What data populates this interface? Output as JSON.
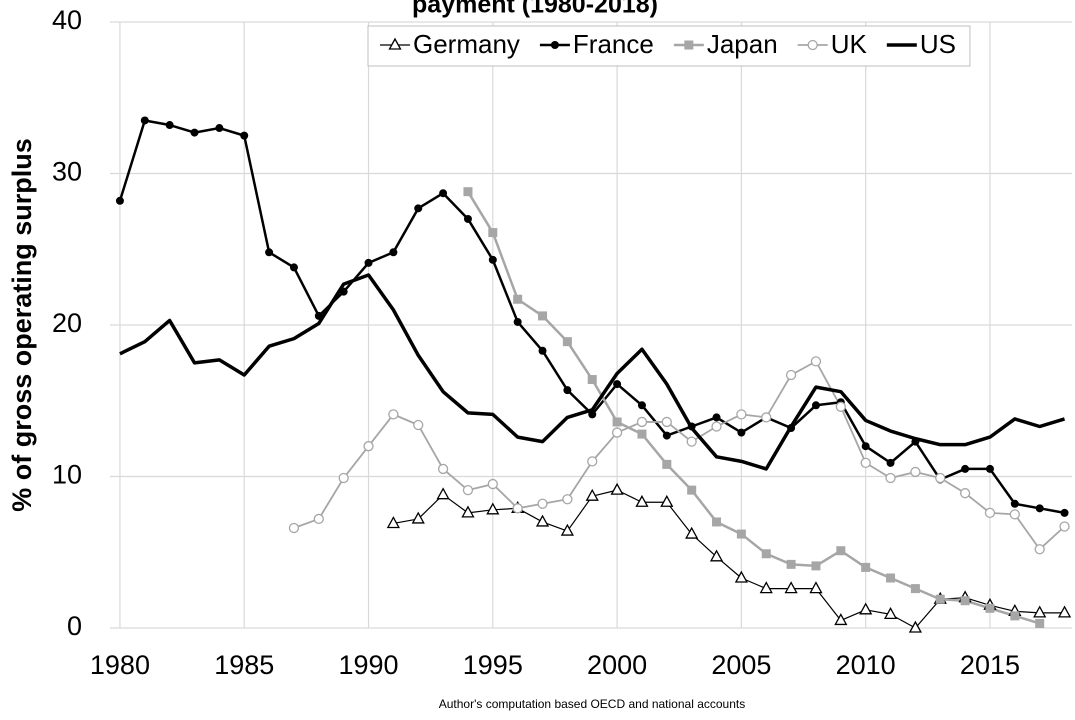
{
  "chart_data": {
    "type": "line",
    "title": "payment (1980-2018)",
    "y_label": "% of gross operating surplus",
    "source": "Author's computation based OECD and national accounts",
    "x": [
      1980,
      1981,
      1982,
      1983,
      1984,
      1985,
      1986,
      1987,
      1988,
      1989,
      1990,
      1991,
      1992,
      1993,
      1994,
      1995,
      1996,
      1997,
      1998,
      1999,
      2000,
      2001,
      2002,
      2003,
      2004,
      2005,
      2006,
      2007,
      2008,
      2009,
      2010,
      2011,
      2012,
      2013,
      2014,
      2015,
      2016,
      2017,
      2018
    ],
    "xlim": [
      1979.6,
      2018.3
    ],
    "xticks": [
      1980,
      1985,
      1990,
      1995,
      2000,
      2005,
      2010,
      2015
    ],
    "ylim": [
      0,
      40
    ],
    "yticks": [
      0,
      10,
      20,
      30,
      40
    ],
    "grid": true,
    "legend": "top",
    "series": [
      {
        "name": "Germany",
        "color": "#000000",
        "marker": "triangle-open",
        "width": 1.2,
        "values": [
          null,
          null,
          null,
          null,
          null,
          null,
          null,
          null,
          null,
          null,
          null,
          6.9,
          7.2,
          8.8,
          7.6,
          7.8,
          7.9,
          7.0,
          6.4,
          8.7,
          9.1,
          8.3,
          8.3,
          6.2,
          4.7,
          3.3,
          2.6,
          2.6,
          2.6,
          0.5,
          1.2,
          0.9,
          0.0,
          1.9,
          2.0,
          1.5,
          1.1,
          1.0,
          1.0
        ]
      },
      {
        "name": "France",
        "color": "#000000",
        "marker": "circle",
        "width": 2.5,
        "values": [
          28.2,
          33.5,
          33.2,
          32.7,
          33.0,
          32.5,
          24.8,
          23.8,
          20.6,
          22.2,
          24.1,
          24.8,
          27.7,
          28.7,
          27.0,
          24.3,
          20.2,
          18.3,
          15.7,
          14.1,
          16.1,
          14.7,
          12.7,
          13.3,
          13.9,
          12.9,
          13.9,
          13.2,
          14.7,
          14.9,
          12.0,
          10.9,
          12.3,
          9.8,
          10.5,
          10.5,
          8.2,
          7.9,
          7.6
        ]
      },
      {
        "name": "Japan",
        "color": "#a6a6a6",
        "marker": "square",
        "width": 2.5,
        "values": [
          null,
          null,
          null,
          null,
          null,
          null,
          null,
          null,
          null,
          null,
          null,
          null,
          null,
          null,
          28.8,
          26.1,
          21.7,
          20.6,
          18.9,
          16.4,
          13.6,
          12.8,
          10.8,
          9.1,
          7.0,
          6.2,
          4.9,
          4.2,
          4.1,
          5.1,
          4.0,
          3.3,
          2.6,
          1.9,
          1.8,
          1.3,
          0.8,
          0.3,
          null
        ]
      },
      {
        "name": "UK",
        "color": "#a6a6a6",
        "marker": "circle-open",
        "width": 1.8,
        "values": [
          null,
          null,
          null,
          null,
          null,
          null,
          null,
          6.6,
          7.2,
          9.9,
          12.0,
          14.1,
          13.4,
          10.5,
          9.1,
          9.5,
          7.9,
          8.2,
          8.5,
          11.0,
          12.9,
          13.6,
          13.6,
          12.3,
          13.3,
          14.1,
          13.9,
          16.7,
          17.6,
          14.6,
          10.9,
          9.9,
          10.3,
          9.9,
          8.9,
          7.6,
          7.5,
          5.2,
          6.7
        ]
      },
      {
        "name": "US",
        "color": "#000000",
        "marker": "none",
        "width": 3.5,
        "values": [
          18.1,
          18.9,
          20.3,
          17.5,
          17.7,
          16.7,
          18.6,
          19.1,
          20.1,
          22.7,
          23.3,
          21.0,
          18.0,
          15.6,
          14.2,
          14.1,
          12.6,
          12.3,
          13.9,
          14.4,
          16.8,
          18.4,
          16.1,
          13.2,
          11.3,
          11.0,
          10.5,
          13.3,
          15.9,
          15.6,
          13.7,
          13.0,
          12.5,
          12.1,
          12.1,
          12.6,
          13.8,
          13.3,
          13.8
        ]
      }
    ]
  }
}
